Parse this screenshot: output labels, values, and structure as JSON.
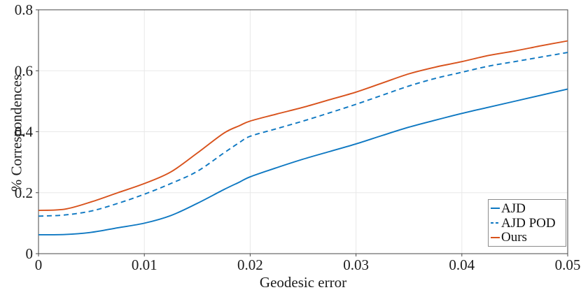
{
  "figure": {
    "background": "#ffffff"
  },
  "chart_data": {
    "type": "line",
    "title": "",
    "xlabel": "Geodesic error",
    "ylabel": "% Correspondences",
    "xlim": [
      0,
      0.05
    ],
    "ylim": [
      0,
      0.8
    ],
    "grid": true,
    "legend_position": "lower right",
    "xticks": {
      "values": [
        0,
        0.01,
        0.02,
        0.03,
        0.04,
        0.05
      ],
      "labels": [
        "0",
        "0.01",
        "0.02",
        "0.03",
        "0.04",
        "0.05"
      ]
    },
    "yticks": {
      "values": [
        0,
        0.2,
        0.4,
        0.6,
        0.8
      ],
      "labels": [
        "0",
        "0.2",
        "0.4",
        "0.6",
        "0.8"
      ]
    },
    "x": [
      0,
      0.0025,
      0.005,
      0.0075,
      0.01,
      0.0125,
      0.015,
      0.0175,
      0.019,
      0.02,
      0.0225,
      0.025,
      0.0275,
      0.03,
      0.0325,
      0.035,
      0.0375,
      0.04,
      0.0425,
      0.045,
      0.0475,
      0.05
    ],
    "series": [
      {
        "name": "AJD",
        "color": "#0e78c2",
        "style": "solid",
        "values": [
          0.062,
          0.063,
          0.07,
          0.085,
          0.1,
          0.125,
          0.165,
          0.21,
          0.235,
          0.252,
          0.282,
          0.31,
          0.335,
          0.36,
          0.388,
          0.415,
          0.438,
          0.46,
          0.48,
          0.5,
          0.52,
          0.54
        ]
      },
      {
        "name": "AJD POD",
        "color": "#0e78c2",
        "style": "dashed",
        "values": [
          0.123,
          0.127,
          0.14,
          0.165,
          0.195,
          0.23,
          0.27,
          0.33,
          0.365,
          0.385,
          0.41,
          0.435,
          0.462,
          0.49,
          0.52,
          0.55,
          0.575,
          0.595,
          0.615,
          0.63,
          0.645,
          0.66
        ]
      },
      {
        "name": "Ours",
        "color": "#d8521c",
        "style": "solid",
        "values": [
          0.142,
          0.146,
          0.17,
          0.2,
          0.23,
          0.268,
          0.33,
          0.395,
          0.42,
          0.435,
          0.458,
          0.48,
          0.505,
          0.53,
          0.56,
          0.59,
          0.612,
          0.63,
          0.65,
          0.665,
          0.682,
          0.698
        ]
      }
    ],
    "style_colors": {
      "grid": "#e8e8e8",
      "frame": "#474747",
      "tick": "#474747",
      "tick_label": "#1c1c1c"
    }
  }
}
